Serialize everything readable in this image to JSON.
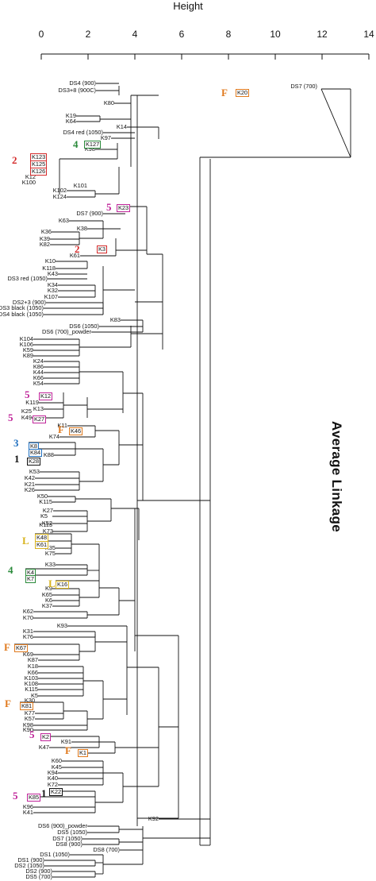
{
  "axis": {
    "title": "Height",
    "ticks": [
      "0",
      "2",
      "4",
      "6",
      "8",
      "10",
      "12",
      "14"
    ],
    "range": [
      0,
      14
    ]
  },
  "method_label": "Average Linkage",
  "colors": {
    "red": "#d42a2a",
    "green": "#2a8a3a",
    "magenta": "#c0259a",
    "orange": "#e07a1e",
    "blue": "#2070c0",
    "black": "#111111",
    "yellow": "#d8b31e"
  },
  "leaves": [
    "DS4 (900)",
    "DS3+8 (900C)",
    "K80",
    "K19",
    "K64",
    "K14",
    "DS4 red (1050)",
    "K97",
    "K98",
    "K102",
    "K124",
    "K36",
    "K39",
    "K82",
    "K10",
    "K118",
    "K43",
    "DS3 red (1050)",
    "K34",
    "K32",
    "K107",
    "DS2+3 (900)",
    "DS3 black (1050)",
    "DS4 black (1050)",
    "K83",
    "DS6 (1050)",
    "DS6 (700)_powder",
    "K104",
    "K106",
    "K59",
    "K89",
    "K24",
    "K86",
    "K44",
    "K66",
    "K54",
    "K119",
    "K13",
    "K11",
    "K74",
    "K88",
    "K53",
    "K42",
    "K21",
    "K26",
    "K50",
    "K115",
    "K5",
    "K113",
    "K73",
    "K33",
    "K35",
    "K75",
    "K9",
    "K65",
    "K6",
    "K37",
    "K62",
    "K70",
    "K93",
    "K31",
    "K76",
    "K69",
    "K87",
    "K18",
    "K66",
    "K103",
    "K108",
    "K115",
    "K5",
    "K30",
    "K77",
    "K57",
    "K98",
    "K90",
    "K91",
    "K47",
    "K60",
    "K45",
    "K94",
    "K40",
    "K72",
    "K96",
    "K41",
    "K92",
    "DS6 (900)_powder",
    "DS5 (1050)",
    "DS7 (1050)",
    "DS8 (900)",
    "DS8 (700)",
    "DS1 (1050)",
    "DS1 (900)",
    "DS2 (1050)",
    "DS2 (900)",
    "DS5 (700)",
    "DS7 (700)",
    "DS7 (900)",
    "K38",
    "K63",
    "K61",
    "K25",
    "K27",
    "K52",
    "K49",
    "K12",
    "K100",
    "K101",
    "K122"
  ],
  "boxed": [
    {
      "text": "K20",
      "color": "orange"
    },
    {
      "text": "K127",
      "color": "green"
    },
    {
      "text": "K123",
      "color": "red"
    },
    {
      "text": "K125",
      "color": "red"
    },
    {
      "text": "K126",
      "color": "red"
    },
    {
      "text": "K23",
      "color": "magenta"
    },
    {
      "text": "K3",
      "color": "red"
    },
    {
      "text": "K12",
      "color": "magenta"
    },
    {
      "text": "K27",
      "color": "magenta"
    },
    {
      "text": "K46",
      "color": "orange"
    },
    {
      "text": "K8",
      "color": "blue"
    },
    {
      "text": "K84",
      "color": "blue"
    },
    {
      "text": "K28",
      "color": "black"
    },
    {
      "text": "K48",
      "color": "yellow"
    },
    {
      "text": "K61",
      "color": "yellow"
    },
    {
      "text": "K4",
      "color": "green"
    },
    {
      "text": "K7",
      "color": "green"
    },
    {
      "text": "K16",
      "color": "yellow"
    },
    {
      "text": "K67",
      "color": "orange"
    },
    {
      "text": "K81",
      "color": "orange"
    },
    {
      "text": "K2",
      "color": "magenta"
    },
    {
      "text": "K1",
      "color": "orange"
    },
    {
      "text": "K85",
      "color": "magenta"
    },
    {
      "text": "K22",
      "color": "black"
    }
  ],
  "groups": [
    "F",
    "4",
    "2",
    "5",
    "2",
    "5",
    "5",
    "F",
    "3",
    "1",
    "L",
    "4",
    "L",
    "F",
    "F",
    "5",
    "F",
    "5",
    "1"
  ]
}
